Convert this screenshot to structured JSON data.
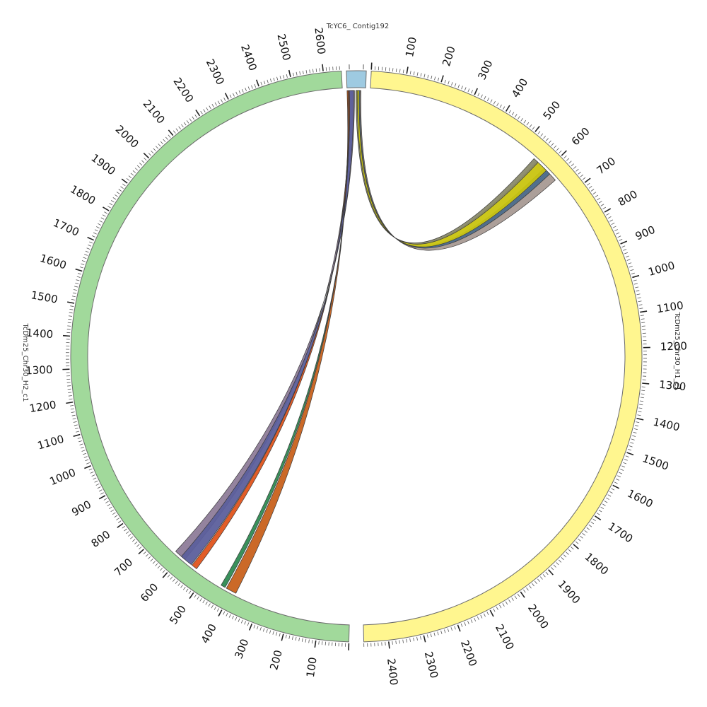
{
  "segments": [
    {
      "id": "contig",
      "label": "TcYC6_ Contig192",
      "color": "#9ecae1",
      "length": 40,
      "startAngle": 358.0,
      "endAngle": 362.0,
      "labelStep": 0,
      "minorStep": 0
    },
    {
      "id": "h1",
      "label": "TcDm25_Chr30_H1_c1",
      "color": "#fff68f",
      "length": 2470,
      "startAngle": 3.0,
      "endAngle": 178.5,
      "labelStep": 100,
      "minorStep": 10
    },
    {
      "id": "h2",
      "label": "TcDm25_Chr30_H2_c1",
      "color": "#a1d99b",
      "length": 2655,
      "startAngle": 181.5,
      "endAngle": 357.0,
      "labelStep": 100,
      "minorStep": 10
    }
  ],
  "links": [
    {
      "color": "#a89a94",
      "from": {
        "seg": "contig",
        "start": 26,
        "end": 30
      },
      "to": {
        "seg": "h1",
        "start": 605,
        "end": 640
      }
    },
    {
      "color": "#4d6e8c",
      "from": {
        "seg": "contig",
        "start": 24,
        "end": 28
      },
      "to": {
        "seg": "h1",
        "start": 590,
        "end": 615
      }
    },
    {
      "color": "#c9c410",
      "from": {
        "seg": "contig",
        "start": 20,
        "end": 26
      },
      "to": {
        "seg": "h1",
        "start": 560,
        "end": 600
      }
    },
    {
      "color": "#8a8a6a",
      "from": {
        "seg": "contig",
        "start": 19,
        "end": 22
      },
      "to": {
        "seg": "h1",
        "start": 548,
        "end": 565
      }
    },
    {
      "color": "#8e7c99",
      "from": {
        "seg": "contig",
        "start": 3,
        "end": 16
      },
      "to": {
        "seg": "h2",
        "start": 585,
        "end": 625
      }
    },
    {
      "color": "#5c5f9c",
      "from": {
        "seg": "contig",
        "start": 5,
        "end": 14
      },
      "to": {
        "seg": "h2",
        "start": 558,
        "end": 600
      }
    },
    {
      "color": "#e0541c",
      "from": {
        "seg": "contig",
        "start": 2,
        "end": 5
      },
      "to": {
        "seg": "h2",
        "start": 536,
        "end": 555
      }
    },
    {
      "color": "#2e8a52",
      "from": {
        "seg": "contig",
        "start": 1,
        "end": 3
      },
      "to": {
        "seg": "h2",
        "start": 425,
        "end": 440
      }
    },
    {
      "color": "#c8611c",
      "from": {
        "seg": "contig",
        "start": 0,
        "end": 2
      },
      "to": {
        "seg": "h2",
        "start": 385,
        "end": 420
      }
    }
  ]
}
